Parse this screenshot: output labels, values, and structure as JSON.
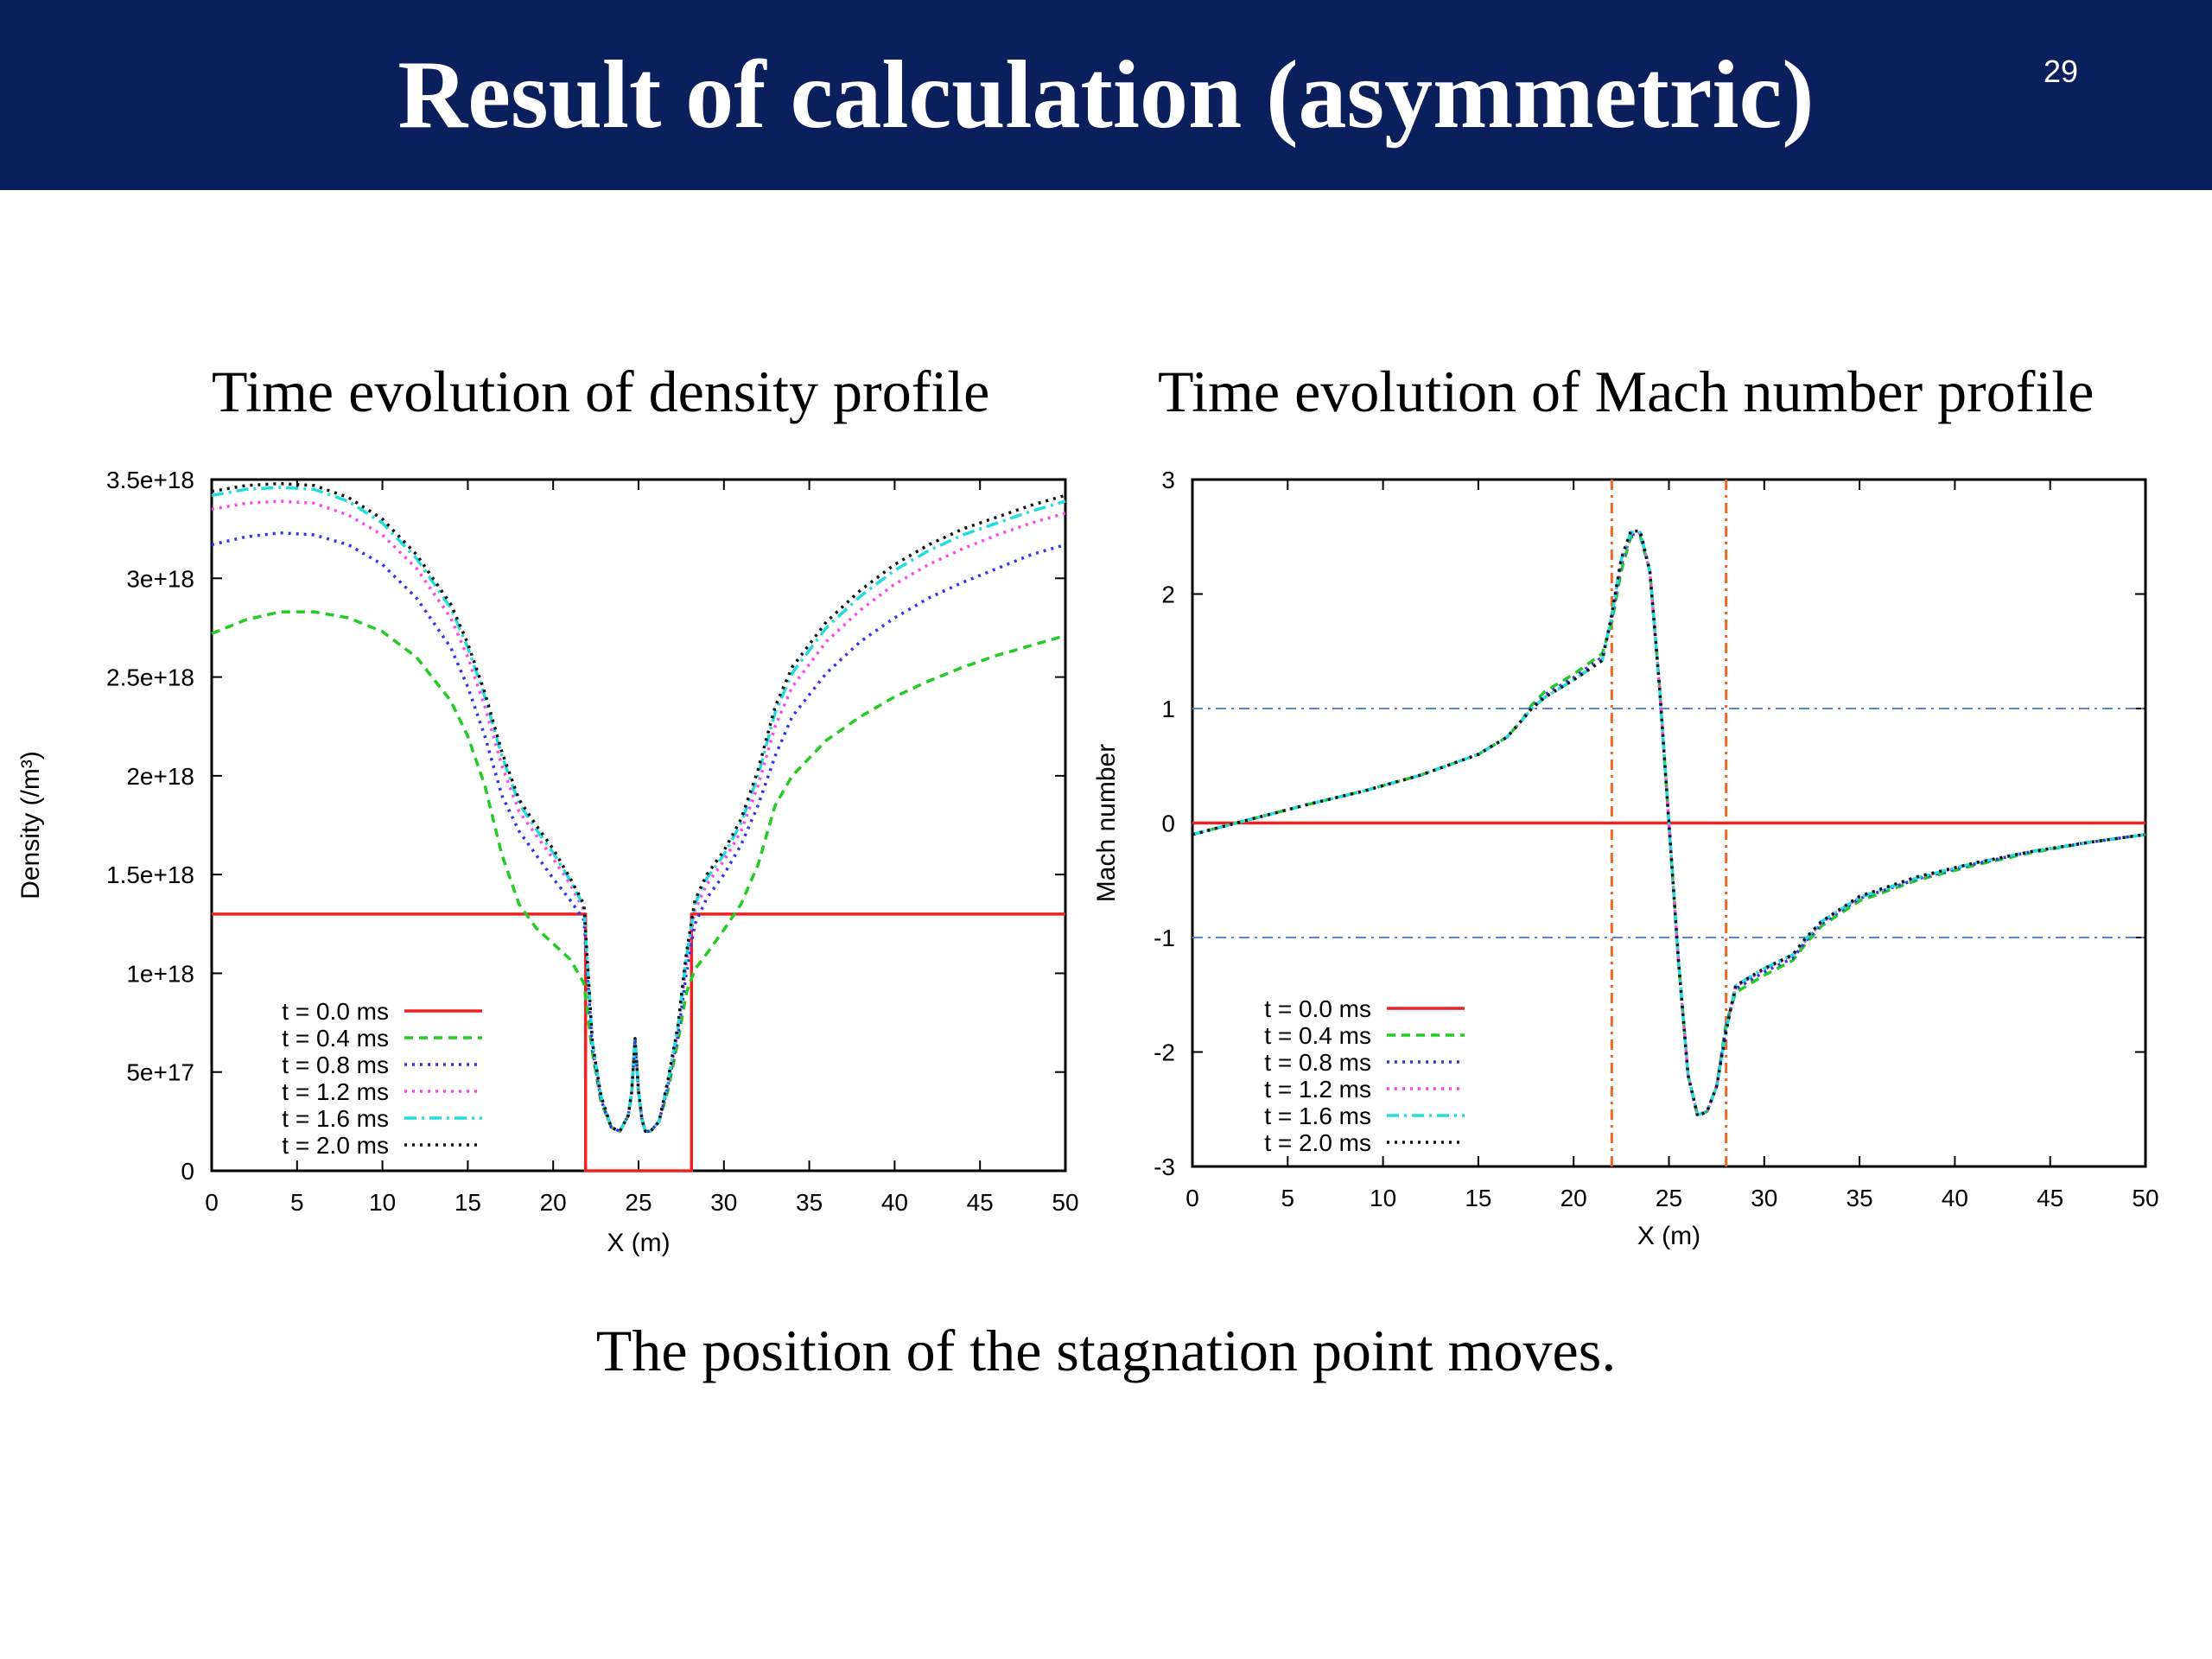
{
  "slide": {
    "title": "Result of calculation (asymmetric)",
    "page_number": "29",
    "caption": "The position of the stagnation point moves.",
    "header_color": "#0b1f5c"
  },
  "chart_data": [
    {
      "type": "line",
      "title": "Time evolution of density profile",
      "xlabel": "X (m)",
      "ylabel": "Density (/m³)",
      "xlim": [
        0,
        50
      ],
      "ylim": [
        0,
        3.5e+18
      ],
      "xticks": [
        "0",
        "5",
        "10",
        "15",
        "20",
        "25",
        "30",
        "35",
        "40",
        "45",
        "50"
      ],
      "yticks": [
        "0",
        "5e+17",
        "1e+18",
        "1.5e+18",
        "2e+18",
        "2.5e+18",
        "3e+18",
        "3.5e+18"
      ],
      "legend_position": "bottom-left",
      "series": [
        {
          "name": "t = 0.0 ms",
          "color": "#ee2222",
          "dash": "solid",
          "x": [
            0,
            21.9,
            21.9,
            28.1,
            28.1,
            50
          ],
          "y": [
            1.3e+18,
            1.3e+18,
            0,
            0,
            1.3e+18,
            1.3e+18
          ]
        },
        {
          "name": "t = 0.4 ms",
          "color": "#22cc22",
          "dash": "dashed",
          "x": [
            0,
            2,
            4,
            6,
            8,
            10,
            12,
            14,
            15,
            16,
            17,
            18,
            19,
            20,
            21,
            21.8,
            22.3,
            22.8,
            23.4,
            23.9,
            24.4,
            24.6,
            24.8,
            25,
            25.2,
            25.4,
            25.7,
            26.2,
            26.7,
            27.3,
            27.8,
            28.3,
            29,
            30,
            31,
            32,
            33,
            34,
            36,
            38,
            40,
            42,
            44,
            46,
            48,
            50
          ],
          "y": [
            2.72e+18,
            2.79e+18,
            2.83e+18,
            2.83e+18,
            2.8e+18,
            2.73e+18,
            2.6e+18,
            2.38e+18,
            2.2e+18,
            1.95e+18,
            1.6e+18,
            1.35e+18,
            1.23e+18,
            1.15e+18,
            1.07e+18,
            9.5e+17,
            6e+17,
            3.5e+17,
            2.2e+17,
            2e+17,
            2.8e+17,
            4e+17,
            6.7e+17,
            4e+17,
            2.6e+17,
            2e+17,
            2e+17,
            2.5e+17,
            4e+17,
            6.5e+17,
            9e+17,
            1.02e+18,
            1.1e+18,
            1.22e+18,
            1.35e+18,
            1.55e+18,
            1.85e+18,
            2e+18,
            2.18e+18,
            2.3e+18,
            2.4e+18,
            2.48e+18,
            2.55e+18,
            2.61e+18,
            2.66e+18,
            2.71e+18
          ]
        },
        {
          "name": "t = 0.8 ms",
          "color": "#3333ee",
          "dash": "dotted",
          "x": [
            0,
            2,
            4,
            6,
            8,
            10,
            12,
            14,
            15,
            16,
            17,
            18,
            19,
            20,
            21,
            21.8,
            22.3,
            22.8,
            23.4,
            23.9,
            24.4,
            24.6,
            24.8,
            25,
            25.2,
            25.4,
            25.7,
            26.2,
            26.7,
            27.3,
            27.8,
            28.3,
            29,
            30,
            31,
            32,
            33,
            34,
            36,
            38,
            40,
            42,
            44,
            46,
            48,
            50
          ],
          "y": [
            3.17e+18,
            3.21e+18,
            3.23e+18,
            3.22e+18,
            3.17e+18,
            3.07e+18,
            2.9e+18,
            2.65e+18,
            2.45e+18,
            2.2e+18,
            1.9e+18,
            1.72e+18,
            1.6e+18,
            1.48e+18,
            1.37e+18,
            1.27e+18,
            6.2e+17,
            3.6e+17,
            2.2e+17,
            2e+17,
            2.8e+17,
            4e+17,
            6.7e+17,
            4e+17,
            2.6e+17,
            2e+17,
            2e+17,
            2.5e+17,
            4.2e+17,
            6.8e+17,
            1e+18,
            1.25e+18,
            1.38e+18,
            1.5e+18,
            1.65e+18,
            1.85e+18,
            2.1e+18,
            2.3e+18,
            2.52e+18,
            2.68e+18,
            2.8e+18,
            2.9e+18,
            2.98e+18,
            3.05e+18,
            3.12e+18,
            3.17e+18
          ]
        },
        {
          "name": "t = 1.2 ms",
          "color": "#ff44ee",
          "dash": "dotted",
          "x": [
            0,
            2,
            4,
            6,
            8,
            10,
            12,
            14,
            15,
            16,
            17,
            18,
            19,
            20,
            21,
            21.8,
            22.3,
            22.8,
            23.4,
            23.9,
            24.4,
            24.6,
            24.8,
            25,
            25.2,
            25.4,
            25.7,
            26.2,
            26.7,
            27.3,
            27.8,
            28.3,
            29,
            30,
            31,
            32,
            33,
            34,
            36,
            38,
            40,
            42,
            44,
            46,
            48,
            50
          ],
          "y": [
            3.35e+18,
            3.38e+18,
            3.39e+18,
            3.38e+18,
            3.32e+18,
            3.22e+18,
            3.05e+18,
            2.8e+18,
            2.6e+18,
            2.35e+18,
            2.05e+18,
            1.82e+18,
            1.7e+18,
            1.58e+18,
            1.45e+18,
            1.32e+18,
            6.4e+17,
            3.7e+17,
            2.2e+17,
            2e+17,
            2.8e+17,
            4e+17,
            6.7e+17,
            4e+17,
            2.6e+17,
            2e+17,
            2e+17,
            2.5e+17,
            4.3e+17,
            7e+17,
            1.05e+18,
            1.32e+18,
            1.45e+18,
            1.57e+18,
            1.72e+18,
            1.95e+18,
            2.25e+18,
            2.45e+18,
            2.68e+18,
            2.84e+18,
            2.97e+18,
            3.07e+18,
            3.15e+18,
            3.22e+18,
            3.28e+18,
            3.33e+18
          ]
        },
        {
          "name": "t = 1.6 ms",
          "color": "#22dddd",
          "dash": "dashdot",
          "x": [
            0,
            2,
            4,
            6,
            8,
            10,
            12,
            14,
            15,
            16,
            17,
            18,
            19,
            20,
            21,
            21.8,
            22.3,
            22.8,
            23.4,
            23.9,
            24.4,
            24.6,
            24.8,
            25,
            25.2,
            25.4,
            25.7,
            26.2,
            26.7,
            27.3,
            27.8,
            28.3,
            29,
            30,
            31,
            32,
            33,
            34,
            36,
            38,
            40,
            42,
            44,
            46,
            48,
            50
          ],
          "y": [
            3.42e+18,
            3.45e+18,
            3.46e+18,
            3.45e+18,
            3.39e+18,
            3.28e+18,
            3.1e+18,
            2.85e+18,
            2.65e+18,
            2.4e+18,
            2.1e+18,
            1.86e+18,
            1.73e+18,
            1.61e+18,
            1.47e+18,
            1.34e+18,
            6.5e+17,
            3.8e+17,
            2.2e+17,
            2e+17,
            2.8e+17,
            4e+17,
            6.7e+17,
            4e+17,
            2.6e+17,
            2e+17,
            2e+17,
            2.5e+17,
            4.4e+17,
            7.2e+17,
            1.08e+18,
            1.35e+18,
            1.48e+18,
            1.6e+18,
            1.76e+18,
            2e+18,
            2.32e+18,
            2.52e+18,
            2.75e+18,
            2.91e+18,
            3.04e+18,
            3.14e+18,
            3.22e+18,
            3.28e+18,
            3.34e+18,
            3.39e+18
          ]
        },
        {
          "name": "t = 2.0 ms",
          "color": "#111111",
          "dash": "dotted",
          "x": [
            0,
            2,
            4,
            6,
            8,
            10,
            12,
            14,
            15,
            16,
            17,
            18,
            19,
            20,
            21,
            21.8,
            22.3,
            22.8,
            23.4,
            23.9,
            24.4,
            24.6,
            24.8,
            25,
            25.2,
            25.4,
            25.7,
            26.2,
            26.7,
            27.3,
            27.8,
            28.3,
            29,
            30,
            31,
            32,
            33,
            34,
            36,
            38,
            40,
            42,
            44,
            46,
            48,
            50
          ],
          "y": [
            3.44e+18,
            3.47e+18,
            3.48e+18,
            3.47e+18,
            3.41e+18,
            3.3e+18,
            3.12e+18,
            2.87e+18,
            2.67e+18,
            2.42e+18,
            2.12e+18,
            1.88e+18,
            1.75e+18,
            1.63e+18,
            1.48e+18,
            1.35e+18,
            6.5e+17,
            3.8e+17,
            2.2e+17,
            2e+17,
            2.8e+17,
            4e+17,
            6.7e+17,
            4e+17,
            2.6e+17,
            2e+17,
            2e+17,
            2.5e+17,
            4.5e+17,
            7.3e+17,
            1.1e+18,
            1.37e+18,
            1.5e+18,
            1.62e+18,
            1.78e+18,
            2.03e+18,
            2.35e+18,
            2.55e+18,
            2.78e+18,
            2.94e+18,
            3.07e+18,
            3.17e+18,
            3.25e+18,
            3.31e+18,
            3.37e+18,
            3.42e+18
          ]
        }
      ]
    },
    {
      "type": "line",
      "title": "Time evolution of Mach number profile",
      "xlabel": "X (m)",
      "ylabel": "Mach number",
      "xlim": [
        0,
        50
      ],
      "ylim": [
        -3,
        3
      ],
      "xticks": [
        "0",
        "5",
        "10",
        "15",
        "20",
        "25",
        "30",
        "35",
        "40",
        "45",
        "50"
      ],
      "yticks": [
        "-3",
        "-2",
        "-1",
        "0",
        "1",
        "2",
        "3"
      ],
      "legend_position": "bottom-left",
      "reference_lines": {
        "horizontal": [
          1,
          -1
        ],
        "horizontal_color": "#5588cc",
        "vertical": [
          22,
          28
        ],
        "vertical_color": "#ee6622"
      },
      "series": [
        {
          "name": "t = 0.0 ms",
          "color": "#ee2222",
          "dash": "solid",
          "x": [
            0,
            50
          ],
          "y": [
            0,
            0
          ]
        },
        {
          "name": "t = 0.4 ms",
          "color": "#22cc22",
          "dash": "dashed",
          "x": [
            0,
            3,
            6,
            9,
            12,
            15,
            16.5,
            17.3,
            17.8,
            18.5,
            20,
            21.5,
            22,
            22.5,
            23,
            23.5,
            24,
            24.5,
            25,
            25.5,
            26,
            26.5,
            27,
            27.5,
            28,
            28.5,
            30,
            31.5,
            32.2,
            33,
            35,
            38,
            41,
            44,
            47,
            50
          ],
          "y": [
            -0.1,
            0.03,
            0.16,
            0.28,
            0.42,
            0.6,
            0.75,
            0.9,
            1.03,
            1.15,
            1.3,
            1.48,
            1.75,
            2.2,
            2.5,
            2.5,
            2.2,
            1.2,
            0.0,
            -1.2,
            -2.2,
            -2.55,
            -2.52,
            -2.3,
            -1.75,
            -1.48,
            -1.33,
            -1.2,
            -1.05,
            -0.9,
            -0.68,
            -0.5,
            -0.37,
            -0.26,
            -0.17,
            -0.1
          ]
        },
        {
          "name": "t = 0.8 ms",
          "color": "#3333ee",
          "dash": "dotted",
          "x": [
            0,
            3,
            6,
            9,
            12,
            15,
            16.5,
            17.3,
            17.8,
            18.5,
            20,
            21.5,
            22,
            22.5,
            23,
            23.5,
            24,
            24.5,
            25,
            25.5,
            26,
            26.5,
            27,
            27.5,
            28,
            28.5,
            30,
            31.5,
            32.2,
            33,
            35,
            38,
            41,
            44,
            47,
            50
          ],
          "y": [
            -0.1,
            0.03,
            0.16,
            0.28,
            0.42,
            0.6,
            0.75,
            0.9,
            1.01,
            1.12,
            1.27,
            1.45,
            1.78,
            2.25,
            2.52,
            2.52,
            2.2,
            1.2,
            0.0,
            -1.2,
            -2.2,
            -2.55,
            -2.52,
            -2.3,
            -1.78,
            -1.45,
            -1.3,
            -1.18,
            -1.03,
            -0.88,
            -0.66,
            -0.49,
            -0.36,
            -0.25,
            -0.17,
            -0.1
          ]
        },
        {
          "name": "t = 1.2 ms",
          "color": "#ff44ee",
          "dash": "dotted",
          "x": [
            0,
            3,
            6,
            9,
            12,
            15,
            16.5,
            17.3,
            17.8,
            18.5,
            20,
            21.5,
            22,
            22.5,
            23,
            23.5,
            24,
            24.5,
            25,
            25.5,
            26,
            26.5,
            27,
            27.5,
            28,
            28.5,
            30,
            31.5,
            32.2,
            33,
            35,
            38,
            41,
            44,
            47,
            50
          ],
          "y": [
            -0.1,
            0.03,
            0.16,
            0.28,
            0.42,
            0.6,
            0.75,
            0.9,
            1.0,
            1.1,
            1.25,
            1.43,
            1.8,
            2.28,
            2.53,
            2.53,
            2.2,
            1.2,
            0.0,
            -1.2,
            -2.2,
            -2.55,
            -2.52,
            -2.3,
            -1.8,
            -1.43,
            -1.28,
            -1.16,
            -1.02,
            -0.87,
            -0.65,
            -0.48,
            -0.35,
            -0.25,
            -0.17,
            -0.1
          ]
        },
        {
          "name": "t = 1.6 ms",
          "color": "#22dddd",
          "dash": "dashdot",
          "x": [
            0,
            3,
            6,
            9,
            12,
            15,
            16.5,
            17.3,
            17.8,
            18.5,
            20,
            21.5,
            22,
            22.5,
            23,
            23.5,
            24,
            24.5,
            25,
            25.5,
            26,
            26.5,
            27,
            27.5,
            28,
            28.5,
            30,
            31.5,
            32.2,
            33,
            35,
            38,
            41,
            44,
            47,
            50
          ],
          "y": [
            -0.1,
            0.03,
            0.16,
            0.28,
            0.42,
            0.6,
            0.75,
            0.9,
            1.0,
            1.1,
            1.25,
            1.42,
            1.81,
            2.3,
            2.54,
            2.54,
            2.2,
            1.2,
            0.0,
            -1.2,
            -2.2,
            -2.55,
            -2.52,
            -2.3,
            -1.81,
            -1.42,
            -1.27,
            -1.15,
            -1.01,
            -0.86,
            -0.65,
            -0.48,
            -0.35,
            -0.25,
            -0.17,
            -0.1
          ]
        },
        {
          "name": "t = 2.0 ms",
          "color": "#111111",
          "dash": "dotted",
          "x": [
            0,
            3,
            6,
            9,
            12,
            15,
            16.5,
            17.3,
            17.8,
            18.5,
            20,
            21.5,
            22,
            22.5,
            23,
            23.5,
            24,
            24.5,
            25,
            25.5,
            26,
            26.5,
            27,
            27.5,
            28,
            28.5,
            30,
            31.5,
            32.2,
            33,
            35,
            38,
            41,
            44,
            47,
            50
          ],
          "y": [
            -0.1,
            0.03,
            0.16,
            0.28,
            0.42,
            0.6,
            0.75,
            0.9,
            1.0,
            1.1,
            1.25,
            1.42,
            1.82,
            2.31,
            2.55,
            2.55,
            2.2,
            1.2,
            0.0,
            -1.2,
            -2.2,
            -2.56,
            -2.52,
            -2.3,
            -1.82,
            -1.42,
            -1.27,
            -1.15,
            -1.0,
            -0.86,
            -0.64,
            -0.47,
            -0.35,
            -0.25,
            -0.17,
            -0.1
          ]
        }
      ]
    }
  ]
}
